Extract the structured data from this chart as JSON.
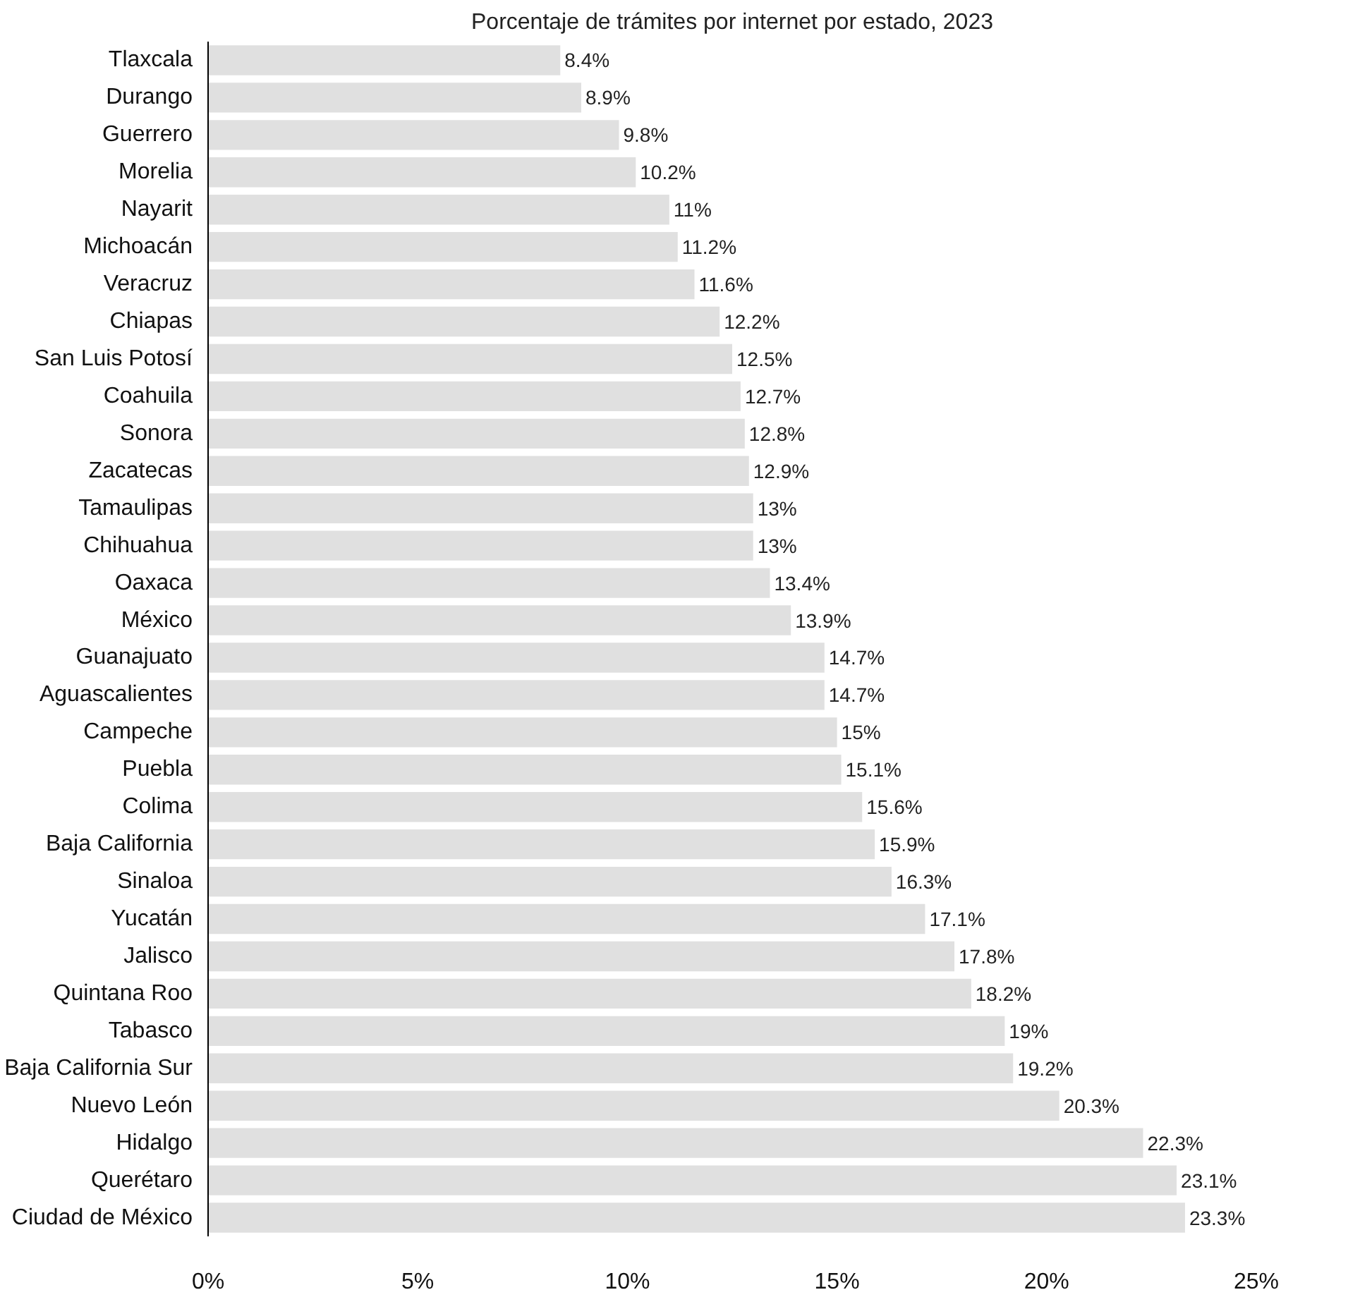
{
  "chart_data": {
    "type": "bar",
    "orientation": "horizontal",
    "title": "Porcentaje de trámites por internet por estado, 2023",
    "categories": [
      "Tlaxcala",
      "Durango",
      "Guerrero",
      "Morelia",
      "Nayarit",
      "Michoacán",
      "Veracruz",
      "Chiapas",
      "San Luis Potosí",
      "Coahuila",
      "Sonora",
      "Zacatecas",
      "Tamaulipas",
      "Chihuahua",
      "Oaxaca",
      "México",
      "Guanajuato",
      "Aguascalientes",
      "Campeche",
      "Puebla",
      "Colima",
      "Baja California",
      "Sinaloa",
      "Yucatán",
      "Jalisco",
      "Quintana Roo",
      "Tabasco",
      "Baja California Sur",
      "Nuevo León",
      "Hidalgo",
      "Querétaro",
      "Ciudad de México"
    ],
    "values": [
      8.4,
      8.9,
      9.8,
      10.2,
      11,
      11.2,
      11.6,
      12.2,
      12.5,
      12.7,
      12.8,
      12.9,
      13,
      13,
      13.4,
      13.9,
      14.7,
      14.7,
      15,
      15.1,
      15.6,
      15.9,
      16.3,
      17.1,
      17.8,
      18.2,
      19,
      19.2,
      20.3,
      22.3,
      23.1,
      23.3
    ],
    "value_labels": [
      "8.4%",
      "8.9%",
      "9.8%",
      "10.2%",
      "11%",
      "11.2%",
      "11.6%",
      "12.2%",
      "12.5%",
      "12.7%",
      "12.8%",
      "12.9%",
      "13%",
      "13%",
      "13.4%",
      "13.9%",
      "14.7%",
      "14.7%",
      "15%",
      "15.1%",
      "15.6%",
      "15.9%",
      "16.3%",
      "17.1%",
      "17.8%",
      "18.2%",
      "19%",
      "19.2%",
      "20.3%",
      "22.3%",
      "23.1%",
      "23.3%"
    ],
    "color": "#e0e0e0",
    "xlim": [
      0,
      25
    ],
    "xticks": [
      {
        "value": 0,
        "label": "0%"
      },
      {
        "value": 5,
        "label": "5%"
      },
      {
        "value": 10,
        "label": "10%"
      },
      {
        "value": 15,
        "label": "15%"
      },
      {
        "value": 20,
        "label": "20%"
      },
      {
        "value": 25,
        "label": "25%"
      }
    ],
    "grid": false
  }
}
